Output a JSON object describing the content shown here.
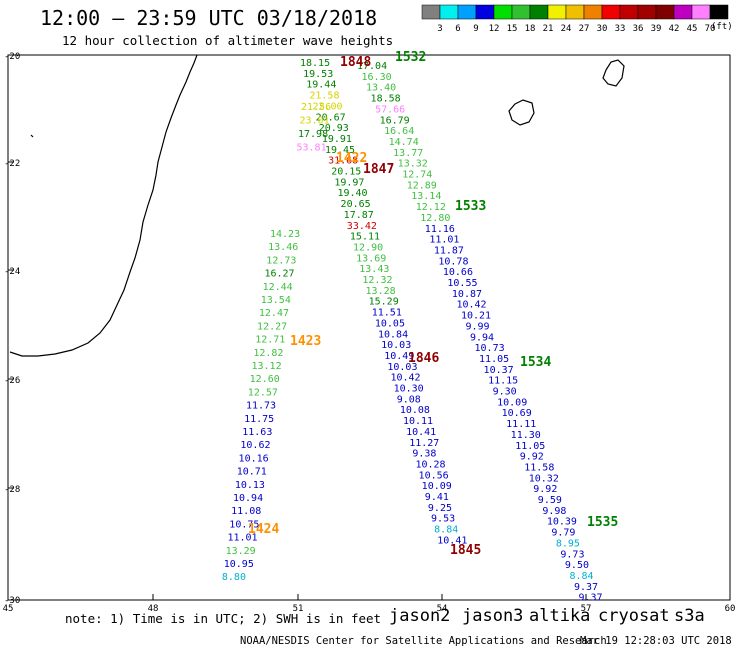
{
  "title": "12:00 – 23:59 UTC 03/18/2018",
  "subtitle": "12 hour collection of altimeter wave heights",
  "color_scale": {
    "colors": [
      "#808080",
      "#00f0f0",
      "#00a0ff",
      "#0000e0",
      "#00e000",
      "#30c030",
      "#008000",
      "#f0f000",
      "#f0c000",
      "#f08000",
      "#f00000",
      "#c00000",
      "#a00000",
      "#800000",
      "#c000c0",
      "#ff80ff",
      "#000000"
    ],
    "ticks": [
      "3",
      "6",
      "9",
      "12",
      "15",
      "18",
      "21",
      "24",
      "27",
      "30",
      "33",
      "36",
      "39",
      "42",
      "45",
      "70"
    ],
    "unit": "(ft)"
  },
  "map": {
    "lat_labels": [
      "-20",
      "-22",
      "-24",
      "-26",
      "-28",
      "-30"
    ],
    "lon_labels": [
      "45",
      "48",
      "51",
      "54",
      "57",
      "60"
    ]
  },
  "satellites": [
    {
      "name": "jason2",
      "color": "#0000c8"
    },
    {
      "name": "jason3",
      "color": "#00a000"
    },
    {
      "name": "altika",
      "color": "#ff9000"
    },
    {
      "name": "cryosat",
      "color": "#d00000"
    },
    {
      "name": "s3a",
      "color": "#900000"
    }
  ],
  "note": "note: 1) Time is in UTC; 2) SWH is in feet",
  "credit": "NOAA/NESDIS Center for Satellite Applications and Research",
  "credit_time": "Mar 19 12:28:03 UTC 2018",
  "time_labels": [
    {
      "text": "1848",
      "color": "#900000"
    },
    {
      "text": "1532",
      "color": "#008000"
    },
    {
      "text": "1422",
      "color": "#ff9000"
    },
    {
      "text": "1847",
      "color": "#900000"
    },
    {
      "text": "1533",
      "color": "#008000"
    },
    {
      "text": "1423",
      "color": "#ff9000"
    },
    {
      "text": "1846",
      "color": "#900000"
    },
    {
      "text": "1534",
      "color": "#008000"
    },
    {
      "text": "1424",
      "color": "#ff9000"
    },
    {
      "text": "1845",
      "color": "#900000"
    },
    {
      "text": "1535",
      "color": "#008000"
    }
  ],
  "tracks": [
    {
      "name": "track-a",
      "values": [
        {
          "v": "18.15",
          "c": "#008000"
        },
        {
          "v": "19.53",
          "c": "#008000"
        },
        {
          "v": "19.44",
          "c": "#008000"
        },
        {
          "v": "21.58",
          "c": "#d4d400"
        },
        {
          "v": "22.00",
          "c": "#d4d400"
        },
        {
          "v": "20.67",
          "c": "#008000"
        },
        {
          "v": "20.93",
          "c": "#008000"
        },
        {
          "v": "19.91",
          "c": "#008000"
        },
        {
          "v": "19.45",
          "c": "#008000"
        },
        {
          "v": "31.68",
          "c": "#d00000"
        },
        {
          "v": "20.15",
          "c": "#008000"
        },
        {
          "v": "19.97",
          "c": "#008000"
        },
        {
          "v": "19.40",
          "c": "#008000"
        },
        {
          "v": "20.65",
          "c": "#008000"
        },
        {
          "v": "17.87",
          "c": "#008000"
        },
        {
          "v": "33.42",
          "c": "#d00000"
        },
        {
          "v": "15.11",
          "c": "#008000"
        },
        {
          "v": "12.90",
          "c": "#40c040"
        },
        {
          "v": "13.69",
          "c": "#40c040"
        },
        {
          "v": "13.43",
          "c": "#40c040"
        },
        {
          "v": "12.32",
          "c": "#40c040"
        },
        {
          "v": "13.28",
          "c": "#40c040"
        },
        {
          "v": "15.29",
          "c": "#008000"
        },
        {
          "v": "11.51",
          "c": "#0000c8"
        },
        {
          "v": "10.05",
          "c": "#0000c8"
        },
        {
          "v": "10.84",
          "c": "#0000c8"
        },
        {
          "v": "10.03",
          "c": "#0000c8"
        },
        {
          "v": "10.49",
          "c": "#0000c8"
        },
        {
          "v": "10.03",
          "c": "#0000c8"
        },
        {
          "v": "10.42",
          "c": "#0000c8"
        },
        {
          "v": "10.30",
          "c": "#0000c8"
        },
        {
          "v": "9.08",
          "c": "#0000c8"
        },
        {
          "v": "10.08",
          "c": "#0000c8"
        },
        {
          "v": "10.11",
          "c": "#0000c8"
        },
        {
          "v": "10.41",
          "c": "#0000c8"
        },
        {
          "v": "11.27",
          "c": "#0000c8"
        },
        {
          "v": "9.38",
          "c": "#0000c8"
        },
        {
          "v": "10.28",
          "c": "#0000c8"
        },
        {
          "v": "10.56",
          "c": "#0000c8"
        },
        {
          "v": "10.09",
          "c": "#0000c8"
        },
        {
          "v": "9.41",
          "c": "#0000c8"
        },
        {
          "v": "9.25",
          "c": "#0000c8"
        },
        {
          "v": "9.53",
          "c": "#0000c8"
        },
        {
          "v": "8.84",
          "c": "#00b0d0"
        },
        {
          "v": "10.41",
          "c": "#0000c8"
        }
      ]
    },
    {
      "name": "track-b",
      "values": [
        {
          "v": "17.04",
          "c": "#008000"
        },
        {
          "v": "16.30",
          "c": "#40c040"
        },
        {
          "v": "13.40",
          "c": "#40c040"
        },
        {
          "v": "18.58",
          "c": "#008000"
        },
        {
          "v": "57.66",
          "c": "#ff80ff"
        },
        {
          "v": "16.79",
          "c": "#008000"
        },
        {
          "v": "16.64",
          "c": "#40c040"
        },
        {
          "v": "14.74",
          "c": "#40c040"
        },
        {
          "v": "13.77",
          "c": "#40c040"
        },
        {
          "v": "13.32",
          "c": "#40c040"
        },
        {
          "v": "12.74",
          "c": "#40c040"
        },
        {
          "v": "12.89",
          "c": "#40c040"
        },
        {
          "v": "13.14",
          "c": "#40c040"
        },
        {
          "v": "12.12",
          "c": "#40c040"
        },
        {
          "v": "12.80",
          "c": "#40c040"
        },
        {
          "v": "11.16",
          "c": "#0000c8"
        },
        {
          "v": "11.01",
          "c": "#0000c8"
        },
        {
          "v": "11.87",
          "c": "#0000c8"
        },
        {
          "v": "10.78",
          "c": "#0000c8"
        },
        {
          "v": "10.66",
          "c": "#0000c8"
        },
        {
          "v": "10.55",
          "c": "#0000c8"
        },
        {
          "v": "10.87",
          "c": "#0000c8"
        },
        {
          "v": "10.42",
          "c": "#0000c8"
        },
        {
          "v": "10.21",
          "c": "#0000c8"
        },
        {
          "v": "9.99",
          "c": "#0000c8"
        },
        {
          "v": "9.94",
          "c": "#0000c8"
        },
        {
          "v": "10.73",
          "c": "#0000c8"
        },
        {
          "v": "11.05",
          "c": "#0000c8"
        },
        {
          "v": "10.37",
          "c": "#0000c8"
        },
        {
          "v": "11.15",
          "c": "#0000c8"
        },
        {
          "v": "9.30",
          "c": "#0000c8"
        },
        {
          "v": "10.09",
          "c": "#0000c8"
        },
        {
          "v": "10.69",
          "c": "#0000c8"
        },
        {
          "v": "11.11",
          "c": "#0000c8"
        },
        {
          "v": "11.30",
          "c": "#0000c8"
        },
        {
          "v": "11.05",
          "c": "#0000c8"
        },
        {
          "v": "9.92",
          "c": "#0000c8"
        },
        {
          "v": "11.58",
          "c": "#0000c8"
        },
        {
          "v": "10.32",
          "c": "#0000c8"
        },
        {
          "v": "9.92",
          "c": "#0000c8"
        },
        {
          "v": "9.59",
          "c": "#0000c8"
        },
        {
          "v": "9.98",
          "c": "#0000c8"
        },
        {
          "v": "10.39",
          "c": "#0000c8"
        },
        {
          "v": "9.79",
          "c": "#0000c8"
        },
        {
          "v": "8.95",
          "c": "#00b0d0"
        },
        {
          "v": "9.73",
          "c": "#0000c8"
        },
        {
          "v": "9.50",
          "c": "#0000c8"
        },
        {
          "v": "8.84",
          "c": "#00b0d0"
        },
        {
          "v": "9.37",
          "c": "#0000c8"
        },
        {
          "v": "9.37",
          "c": "#0000c8"
        }
      ]
    },
    {
      "name": "track-c",
      "values": [
        {
          "v": "14.23",
          "c": "#40c040"
        },
        {
          "v": "13.46",
          "c": "#40c040"
        },
        {
          "v": "12.73",
          "c": "#40c040"
        },
        {
          "v": "16.27",
          "c": "#008000"
        },
        {
          "v": "12.44",
          "c": "#40c040"
        },
        {
          "v": "13.54",
          "c": "#40c040"
        },
        {
          "v": "12.47",
          "c": "#40c040"
        },
        {
          "v": "12.27",
          "c": "#40c040"
        },
        {
          "v": "12.71",
          "c": "#40c040"
        },
        {
          "v": "12.82",
          "c": "#40c040"
        },
        {
          "v": "13.12",
          "c": "#40c040"
        },
        {
          "v": "12.60",
          "c": "#40c040"
        },
        {
          "v": "12.57",
          "c": "#40c040"
        },
        {
          "v": "11.73",
          "c": "#0000c8"
        },
        {
          "v": "11.75",
          "c": "#0000c8"
        },
        {
          "v": "11.63",
          "c": "#0000c8"
        },
        {
          "v": "10.62",
          "c": "#0000c8"
        },
        {
          "v": "10.16",
          "c": "#0000c8"
        },
        {
          "v": "10.71",
          "c": "#0000c8"
        },
        {
          "v": "10.13",
          "c": "#0000c8"
        },
        {
          "v": "10.94",
          "c": "#0000c8"
        },
        {
          "v": "11.08",
          "c": "#0000c8"
        },
        {
          "v": "10.75",
          "c": "#0000c8"
        },
        {
          "v": "11.01",
          "c": "#0000c8"
        },
        {
          "v": "13.29",
          "c": "#40c040"
        },
        {
          "v": "10.95",
          "c": "#0000c8"
        },
        {
          "v": "8.80",
          "c": "#00b0d0"
        }
      ]
    },
    {
      "name": "track-d",
      "values": [
        {
          "v": "21.56",
          "c": "#d4d400"
        },
        {
          "v": "23.01",
          "c": "#d4d400"
        },
        {
          "v": "17.98",
          "c": "#008000"
        },
        {
          "v": "53.81",
          "c": "#ff80ff"
        }
      ]
    }
  ]
}
